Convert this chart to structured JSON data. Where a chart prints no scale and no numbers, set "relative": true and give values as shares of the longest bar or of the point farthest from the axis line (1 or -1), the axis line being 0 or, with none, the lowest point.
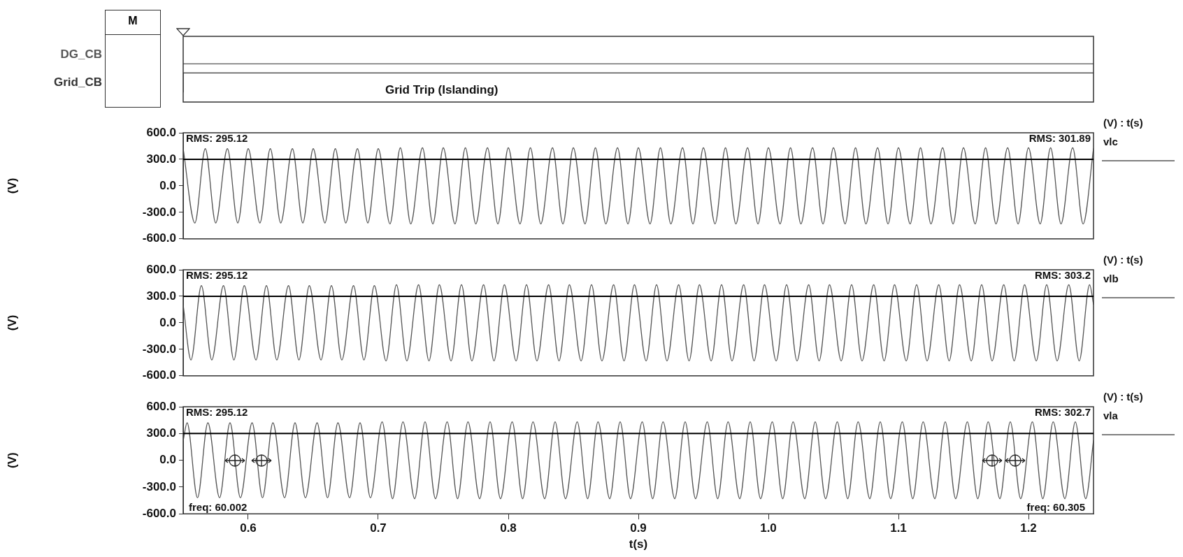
{
  "chart_data": [
    {
      "type": "step",
      "relative": true,
      "xlim": [
        0.55,
        1.25
      ],
      "tick_labels": false,
      "annotations": [
        "M",
        "Grid Trip (Islanding)"
      ],
      "series": [
        {
          "name": "DG_CB",
          "color": "#555555",
          "x": [
            0.55,
            1.25
          ],
          "values": [
            1,
            1
          ]
        },
        {
          "name": "Grid_CB",
          "color": "#333333",
          "x": [
            0.55,
            0.7,
            1.25
          ],
          "values": [
            0.26,
            0.76,
            0.76
          ]
        }
      ]
    },
    {
      "type": "line",
      "xlim": [
        0.55,
        1.25
      ],
      "ylim": [
        -600,
        600
      ],
      "yticks": [
        {
          "value": -600,
          "label": "-600.0"
        },
        {
          "value": -300,
          "label": "-300.0"
        },
        {
          "value": 0,
          "label": "0.0"
        },
        {
          "value": 300,
          "label": "300.0"
        },
        {
          "value": 600,
          "label": "600.0"
        }
      ],
      "tick_labels": "y",
      "ylabel": "(V)",
      "legend": "right",
      "legend_title": "(V) : t(s)",
      "ref_lines": [
        {
          "axis": "y",
          "value": 300,
          "color": "#000000"
        }
      ],
      "annotations": [
        "RMS: 295.12",
        "RMS: 301.89"
      ],
      "series": [
        {
          "name": "vlc",
          "color": "#555555",
          "x": [
            0.55,
            0.559,
            0.567,
            0.575,
            0.584,
            0.592,
            0.6,
            0.609,
            0.617,
            0.625,
            0.634,
            0.642,
            0.65,
            0.659,
            0.667,
            0.675,
            0.684,
            0.692,
            0.7,
            0.709,
            0.717,
            0.725,
            0.734,
            0.742,
            0.75,
            0.759,
            0.767,
            0.775,
            0.784,
            0.792,
            0.8,
            0.809,
            0.817,
            0.825,
            0.834,
            0.842,
            0.85,
            0.859,
            0.867,
            0.875,
            0.884,
            0.892,
            0.9,
            0.909,
            0.917,
            0.925,
            0.934,
            0.942,
            0.95,
            0.959,
            0.967,
            0.975,
            0.984,
            0.992,
            1.0,
            1.009,
            1.017,
            1.025,
            1.034,
            1.042,
            1.05,
            1.059,
            1.067,
            1.075,
            1.084,
            1.092,
            1.1,
            1.109,
            1.117,
            1.125,
            1.134,
            1.142,
            1.15,
            1.159,
            1.167,
            1.175,
            1.184,
            1.192,
            1.2,
            1.209,
            1.217,
            1.225,
            1.234,
            1.242,
            1.25
          ],
          "values": [
            420,
            -420,
            420,
            -420,
            420,
            -420,
            420,
            -420,
            420,
            -420,
            420,
            -420,
            420,
            -420,
            420,
            -420,
            420,
            -420,
            420,
            -430,
            430,
            -430,
            430,
            -430,
            430,
            -430,
            430,
            -430,
            430,
            -430,
            430,
            -430,
            430,
            -430,
            430,
            -430,
            430,
            -430,
            430,
            -430,
            430,
            -430,
            430,
            -430,
            430,
            -430,
            430,
            -430,
            430,
            -430,
            430,
            -430,
            430,
            -430,
            430,
            -430,
            430,
            -430,
            430,
            -430,
            430,
            -430,
            430,
            -430,
            430,
            -430,
            430,
            -430,
            430,
            -430,
            430,
            -430,
            430,
            -430,
            430,
            -430,
            430,
            -430,
            430,
            -430,
            430,
            -430,
            430,
            -430,
            420
          ]
        }
      ]
    },
    {
      "type": "line",
      "xlim": [
        0.55,
        1.25
      ],
      "ylim": [
        -600,
        600
      ],
      "yticks": [
        {
          "value": -600,
          "label": "-600.0"
        },
        {
          "value": -300,
          "label": "-300.0"
        },
        {
          "value": 0,
          "label": "0.0"
        },
        {
          "value": 300,
          "label": "300.0"
        },
        {
          "value": 600,
          "label": "600.0"
        }
      ],
      "tick_labels": "y",
      "ylabel": "(V)",
      "legend": "right",
      "legend_title": "(V) : t(s)",
      "ref_lines": [
        {
          "axis": "y",
          "value": 300,
          "color": "#000000"
        }
      ],
      "annotations": [
        "RMS: 295.12",
        "RMS: 303.2"
      ],
      "series": [
        {
          "name": "vlb",
          "color": "#555555",
          "x": [
            0.55,
            0.556,
            0.564,
            0.572,
            0.581,
            0.589,
            0.597,
            0.606,
            0.614,
            0.622,
            0.631,
            0.639,
            0.647,
            0.656,
            0.664,
            0.672,
            0.681,
            0.689,
            0.697,
            0.706,
            0.714,
            0.722,
            0.731,
            0.739,
            0.747,
            0.756,
            0.764,
            0.772,
            0.781,
            0.789,
            0.797,
            0.806,
            0.814,
            0.822,
            0.831,
            0.839,
            0.847,
            0.856,
            0.864,
            0.872,
            0.881,
            0.889,
            0.897,
            0.906,
            0.914,
            0.922,
            0.931,
            0.939,
            0.947,
            0.956,
            0.964,
            0.972,
            0.981,
            0.989,
            0.997,
            1.006,
            1.014,
            1.022,
            1.031,
            1.039,
            1.047,
            1.056,
            1.064,
            1.072,
            1.081,
            1.089,
            1.097,
            1.106,
            1.114,
            1.122,
            1.131,
            1.139,
            1.147,
            1.156,
            1.164,
            1.172,
            1.181,
            1.189,
            1.197,
            1.206,
            1.214,
            1.222,
            1.231,
            1.239,
            1.247,
            1.25
          ],
          "values": [
            200,
            -420,
            420,
            -420,
            420,
            -420,
            420,
            -420,
            420,
            -420,
            420,
            -420,
            420,
            -420,
            420,
            -420,
            420,
            -420,
            420,
            -430,
            430,
            -430,
            430,
            -430,
            430,
            -430,
            430,
            -430,
            430,
            -430,
            430,
            -430,
            430,
            -430,
            430,
            -430,
            430,
            -430,
            430,
            -430,
            430,
            -430,
            430,
            -430,
            430,
            -430,
            430,
            -430,
            430,
            -430,
            430,
            -430,
            430,
            -430,
            430,
            -430,
            430,
            -430,
            430,
            -430,
            430,
            -430,
            430,
            -430,
            430,
            -430,
            430,
            -430,
            430,
            -430,
            430,
            -430,
            430,
            -430,
            430,
            -430,
            430,
            -430,
            430,
            -430,
            430,
            -430,
            430,
            -430,
            430,
            210
          ]
        }
      ]
    },
    {
      "type": "line",
      "xlim": [
        0.55,
        1.25
      ],
      "ylim": [
        -600,
        600
      ],
      "yticks": [
        {
          "value": -600,
          "label": "-600.0"
        },
        {
          "value": -300,
          "label": "-300.0"
        },
        {
          "value": 0,
          "label": "0.0"
        },
        {
          "value": 300,
          "label": "300.0"
        },
        {
          "value": 600,
          "label": "600.0"
        }
      ],
      "xticks": [
        0.6,
        0.7,
        0.8,
        0.9,
        {
          "value": 1,
          "label": "1.0"
        },
        1.1,
        1.2
      ],
      "xlabel": "t(s)",
      "ylabel": "(V)",
      "legend": "right",
      "legend_title": "(V) : t(s)",
      "ref_lines": [
        {
          "axis": "y",
          "value": 300,
          "color": "#000000"
        }
      ],
      "annotations": [
        "RMS: 295.12",
        "RMS: 302.7",
        "freq: 60.002",
        "freq: 60.305"
      ],
      "series": [
        {
          "name": "vla",
          "color": "#555555",
          "x": [
            0.55,
            0.553,
            0.561,
            0.569,
            0.578,
            0.586,
            0.594,
            0.603,
            0.611,
            0.619,
            0.628,
            0.636,
            0.644,
            0.653,
            0.661,
            0.669,
            0.678,
            0.686,
            0.694,
            0.703,
            0.711,
            0.719,
            0.728,
            0.736,
            0.744,
            0.753,
            0.761,
            0.769,
            0.778,
            0.786,
            0.794,
            0.803,
            0.811,
            0.819,
            0.828,
            0.836,
            0.844,
            0.853,
            0.861,
            0.869,
            0.878,
            0.886,
            0.894,
            0.903,
            0.911,
            0.919,
            0.928,
            0.936,
            0.944,
            0.953,
            0.961,
            0.969,
            0.978,
            0.986,
            0.994,
            1.003,
            1.011,
            1.019,
            1.028,
            1.036,
            1.044,
            1.053,
            1.061,
            1.069,
            1.078,
            1.086,
            1.094,
            1.103,
            1.111,
            1.119,
            1.128,
            1.136,
            1.144,
            1.153,
            1.161,
            1.169,
            1.178,
            1.186,
            1.194,
            1.203,
            1.211,
            1.219,
            1.228,
            1.236,
            1.244,
            1.25
          ],
          "values": [
            220,
            420,
            -420,
            420,
            -420,
            420,
            -420,
            420,
            -420,
            420,
            -420,
            420,
            -420,
            420,
            -420,
            420,
            -420,
            420,
            -420,
            430,
            -430,
            430,
            -430,
            430,
            -430,
            430,
            -430,
            430,
            -430,
            430,
            -430,
            430,
            -430,
            430,
            -430,
            430,
            -430,
            430,
            -430,
            430,
            -430,
            430,
            -430,
            430,
            -430,
            430,
            -430,
            430,
            -430,
            430,
            -430,
            430,
            -430,
            430,
            -430,
            430,
            -430,
            430,
            -430,
            430,
            -430,
            430,
            -430,
            430,
            -430,
            430,
            -430,
            430,
            -430,
            430,
            -430,
            430,
            -430,
            430,
            -430,
            430,
            -430,
            430,
            -430,
            430,
            -430,
            430,
            -430,
            430,
            -430,
            220
          ]
        }
      ]
    }
  ]
}
